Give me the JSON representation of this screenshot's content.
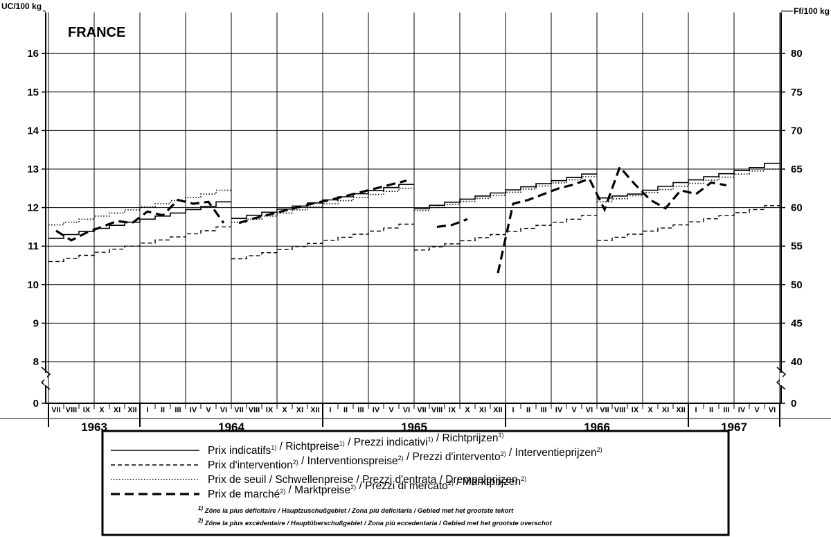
{
  "chart_data": {
    "type": "line",
    "title": "FRANCE",
    "y_left_label": "UC/100 kg",
    "y_right_label": "Ff/100 kg",
    "y_left_ticks": [
      "0",
      "8",
      "9",
      "10",
      "11",
      "12",
      "13",
      "14",
      "15",
      "16"
    ],
    "y_right_ticks": [
      "0",
      "40",
      "45",
      "50",
      "55",
      "60",
      "65",
      "70",
      "75",
      "80"
    ],
    "y_left_range": [
      7.4,
      16.6
    ],
    "y_axis_break": "between 0 and 8 UC (0 and 40 Ff)",
    "grid": true,
    "legend_position": "bottom",
    "x_months_start": "1963-VII",
    "x_months_end": "1967-VI",
    "month_labels": [
      "VII",
      "VIII",
      "IX",
      "X",
      "XI",
      "XII",
      "I",
      "II",
      "III",
      "IV",
      "V",
      "VI",
      "VII",
      "VIII",
      "IX",
      "X",
      "XI",
      "XII",
      "I",
      "II",
      "III",
      "IV",
      "V",
      "VI",
      "VII",
      "VIII",
      "IX",
      "X",
      "XI",
      "XII",
      "I",
      "II",
      "III",
      "IV",
      "V",
      "VI",
      "VII",
      "VIII",
      "IX",
      "X",
      "XI",
      "XII",
      "I",
      "II",
      "III",
      "IV",
      "V",
      "VI"
    ],
    "year_labels": [
      "1963",
      "1964",
      "1965",
      "1966",
      "1967"
    ],
    "series": [
      {
        "name": "Prix indicatifs",
        "style": "solid",
        "segments": [
          {
            "x": [
              "1963-07",
              "1963-08",
              "1963-09",
              "1963-10",
              "1963-11",
              "1963-12",
              "1964-01",
              "1964-02",
              "1964-03",
              "1964-04",
              "1964-05",
              "1964-06"
            ],
            "y": [
              11.2,
              11.3,
              11.38,
              11.46,
              11.54,
              11.62,
              11.7,
              11.78,
              11.86,
              11.95,
              12.03,
              12.15
            ]
          },
          {
            "x": [
              "1964-07",
              "1964-08",
              "1964-09",
              "1964-10",
              "1964-11",
              "1964-12",
              "1965-01",
              "1965-02",
              "1965-03",
              "1965-04",
              "1965-05",
              "1965-06"
            ],
            "y": [
              11.72,
              11.8,
              11.88,
              11.96,
              12.04,
              12.12,
              12.2,
              12.28,
              12.36,
              12.44,
              12.52,
              12.6
            ]
          },
          {
            "x": [
              "1965-07",
              "1965-08",
              "1965-09",
              "1965-10",
              "1965-11",
              "1965-12",
              "1966-01",
              "1966-02",
              "1966-03",
              "1966-04",
              "1966-05",
              "1966-06"
            ],
            "y": [
              11.97,
              12.06,
              12.14,
              12.22,
              12.3,
              12.38,
              12.46,
              12.54,
              12.62,
              12.7,
              12.78,
              12.87
            ]
          },
          {
            "x": [
              "1966-07",
              "1966-08",
              "1966-09",
              "1966-10",
              "1966-11",
              "1966-12",
              "1967-01",
              "1967-02",
              "1967-03",
              "1967-04",
              "1967-05",
              "1967-06"
            ],
            "y": [
              12.25,
              12.3,
              12.35,
              12.45,
              12.55,
              12.65,
              12.72,
              12.8,
              12.88,
              12.96,
              13.04,
              13.15
            ]
          }
        ]
      },
      {
        "name": "Prix d'intervention",
        "style": "dashed",
        "segments": [
          {
            "x": [
              "1963-07",
              "1963-08",
              "1963-09",
              "1963-10",
              "1963-11",
              "1963-12",
              "1964-01",
              "1964-02",
              "1964-03",
              "1964-04",
              "1964-05",
              "1964-06"
            ],
            "y": [
              10.6,
              10.68,
              10.76,
              10.84,
              10.92,
              11.0,
              11.08,
              11.16,
              11.24,
              11.32,
              11.4,
              11.5
            ]
          },
          {
            "x": [
              "1964-07",
              "1964-08",
              "1964-09",
              "1964-10",
              "1964-11",
              "1964-12",
              "1965-01",
              "1965-02",
              "1965-03",
              "1965-04",
              "1965-05",
              "1965-06"
            ],
            "y": [
              10.67,
              10.75,
              10.83,
              10.91,
              10.99,
              11.07,
              11.15,
              11.23,
              11.31,
              11.39,
              11.47,
              11.57
            ]
          },
          {
            "x": [
              "1965-07",
              "1965-08",
              "1965-09",
              "1965-10",
              "1965-11",
              "1965-12",
              "1966-01",
              "1966-02",
              "1966-03",
              "1966-04",
              "1966-05",
              "1966-06"
            ],
            "y": [
              10.9,
              10.98,
              11.06,
              11.14,
              11.22,
              11.3,
              11.38,
              11.46,
              11.54,
              11.62,
              11.7,
              11.8
            ]
          },
          {
            "x": [
              "1966-07",
              "1966-08",
              "1966-09",
              "1966-10",
              "1966-11",
              "1966-12",
              "1967-01",
              "1967-02",
              "1967-03",
              "1967-04",
              "1967-05",
              "1967-06"
            ],
            "y": [
              11.15,
              11.23,
              11.31,
              11.39,
              11.47,
              11.55,
              11.63,
              11.71,
              11.79,
              11.87,
              11.95,
              12.05
            ]
          }
        ]
      },
      {
        "name": "Prix de seuil",
        "style": "dotted",
        "segments": [
          {
            "x": [
              "1963-07",
              "1963-08",
              "1963-09",
              "1963-10",
              "1963-11",
              "1963-12",
              "1964-01",
              "1964-02",
              "1964-03",
              "1964-04",
              "1964-05",
              "1964-06"
            ],
            "y": [
              11.55,
              11.62,
              11.7,
              11.78,
              11.86,
              11.94,
              12.02,
              12.1,
              12.18,
              12.26,
              12.35,
              12.45
            ]
          },
          {
            "x": [
              "1964-07",
              "1964-08",
              "1964-09",
              "1964-10",
              "1964-11",
              "1964-12",
              "1965-01",
              "1965-02",
              "1965-03",
              "1965-04",
              "1965-05",
              "1965-06"
            ],
            "y": [
              11.62,
              11.7,
              11.78,
              11.86,
              11.94,
              12.02,
              12.1,
              12.18,
              12.26,
              12.34,
              12.42,
              12.5
            ]
          },
          {
            "x": [
              "1965-07",
              "1965-08",
              "1965-09",
              "1965-10",
              "1965-11",
              "1965-12",
              "1966-01",
              "1966-02",
              "1966-03",
              "1966-04",
              "1966-05",
              "1966-06"
            ],
            "y": [
              11.92,
              12.0,
              12.08,
              12.16,
              12.24,
              12.32,
              12.4,
              12.48,
              12.56,
              12.64,
              12.72,
              12.8
            ]
          },
          {
            "x": [
              "1966-07",
              "1966-08",
              "1966-09",
              "1966-10",
              "1966-11",
              "1966-12",
              "1967-01",
              "1967-02",
              "1967-03",
              "1967-04",
              "1967-05",
              "1967-06"
            ],
            "y": [
              12.15,
              12.23,
              12.31,
              12.39,
              12.47,
              12.55,
              12.63,
              12.71,
              12.79,
              12.87,
              12.95,
              13.0
            ]
          }
        ]
      },
      {
        "name": "Prix de marché",
        "style": "heavy-dashed",
        "segments": [
          {
            "x": [
              "1963-07",
              "1963-08",
              "1963-09",
              "1963-10",
              "1963-11",
              "1963-12",
              "1964-01",
              "1964-02",
              "1964-03",
              "1964-04",
              "1964-05",
              "1964-06"
            ],
            "y": [
              11.4,
              11.15,
              11.35,
              11.5,
              11.65,
              11.6,
              11.9,
              11.8,
              12.2,
              12.1,
              12.15,
              11.6
            ]
          },
          {
            "x": [
              "1964-07",
              "1964-08",
              "1964-09",
              "1964-10",
              "1964-11",
              "1964-12",
              "1965-01",
              "1965-02",
              "1965-03",
              "1965-04",
              "1965-05",
              "1965-06"
            ],
            "y": [
              11.6,
              11.72,
              11.82,
              11.92,
              12.02,
              12.12,
              12.2,
              12.3,
              12.4,
              12.5,
              12.6,
              12.7
            ]
          },
          {
            "x": [
              "1965-08",
              "1965-09",
              "1965-10"
            ],
            "y": [
              11.5,
              11.55,
              11.7
            ]
          },
          {
            "x": [
              "1965-12",
              "1966-01",
              "1966-02",
              "1966-03",
              "1966-04",
              "1966-05",
              "1966-06",
              "1966-07",
              "1966-08",
              "1966-09",
              "1966-10",
              "1966-11",
              "1966-12",
              "1967-01",
              "1967-02",
              "1967-03"
            ],
            "y": [
              10.3,
              12.1,
              12.2,
              12.35,
              12.5,
              12.6,
              12.75,
              11.95,
              13.05,
              12.6,
              12.2,
              11.98,
              12.45,
              12.35,
              12.65,
              12.58
            ]
          }
        ]
      }
    ]
  },
  "legend": {
    "items": [
      {
        "style": "solid",
        "text": "Prix indicatifs",
        "n1": "1)",
        "text2": " /  Richtpreise",
        "n2": "1)",
        "text3": "  /  Prezzi indicativi",
        "n3": "1)",
        "text4": " /  Richtprijzen",
        "n4": "1)"
      },
      {
        "style": "dashed",
        "text": "Prix d'intervention",
        "n1": "2)",
        "text2": " /  Interventionspreise",
        "n2": "2)",
        "text3": " /  Prezzi d'intervento",
        "n3": "2)",
        "text4": " /  Interventieprijzen",
        "n4": "2)"
      },
      {
        "style": "dotted",
        "text": "Prix de seuil  /  Schwellenpreise  /  Prezzi d'entrata  /  Drempelprijzen",
        "n1": "",
        "text2": "",
        "n2": "",
        "text3": "",
        "n3": "",
        "text4": "",
        "n4": ""
      },
      {
        "style": "heavy-dashed",
        "text": "Prix de marché",
        "n1": "2)",
        "text2": " /  Marktpreise",
        "n2": "2)",
        "text3": " /  Prezzi di mercato",
        "n3": "2)",
        "text4": " /  Marktprijzen",
        "n4": "2)"
      }
    ],
    "notes": [
      {
        "n": "1)",
        "text": " Zône la plus déficitaire  /  Hauptzuschußgebiet  /  Zona più deficitaria  /  Gebied met het grootste tekort"
      },
      {
        "n": "2)",
        "text": " Zône la plus excédentaire  /  Hauptüberschußgebiet  /  Zona più eccedentaria  /  Gebied met het grootste overschot"
      }
    ]
  }
}
